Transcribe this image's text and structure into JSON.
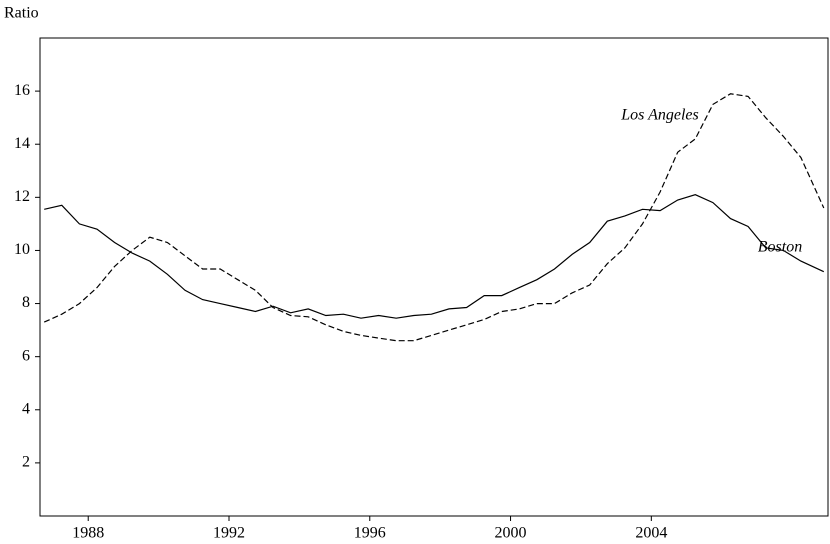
{
  "chart_data": {
    "type": "line",
    "y_label": "Ratio",
    "x": [
      1986.75,
      1987.25,
      1987.75,
      1988.25,
      1988.75,
      1989.25,
      1989.75,
      1990.25,
      1990.75,
      1991.25,
      1991.75,
      1992.25,
      1992.75,
      1993.25,
      1993.75,
      1994.25,
      1994.75,
      1995.25,
      1995.75,
      1996.25,
      1996.75,
      1997.25,
      1997.75,
      1998.25,
      1998.75,
      1999.25,
      1999.75,
      2000.25,
      2000.75,
      2001.25,
      2001.75,
      2002.25,
      2002.75,
      2003.25,
      2003.75,
      2004.25,
      2004.75,
      2005.25,
      2005.75,
      2006.25,
      2006.75,
      2007.25,
      2007.75,
      2008.25,
      2008.9
    ],
    "series": [
      {
        "name": "Boston",
        "color": "#000000",
        "dash": false,
        "values": [
          11.55,
          11.7,
          11.0,
          10.8,
          10.3,
          9.9,
          9.6,
          9.1,
          8.5,
          8.15,
          8.0,
          7.85,
          7.7,
          7.9,
          7.65,
          7.8,
          7.55,
          7.6,
          7.45,
          7.55,
          7.45,
          7.55,
          7.6,
          7.8,
          7.85,
          8.3,
          8.3,
          8.6,
          8.9,
          9.3,
          9.85,
          10.3,
          11.1,
          11.3,
          11.55,
          11.5,
          11.9,
          12.1,
          11.8,
          11.2,
          10.9,
          10.1,
          10.0,
          9.6,
          9.2
        ]
      },
      {
        "name": "Los Angeles",
        "color": "#000000",
        "dash": true,
        "values": [
          7.3,
          7.6,
          8.0,
          8.6,
          9.4,
          10.0,
          10.5,
          10.3,
          9.8,
          9.3,
          9.3,
          8.9,
          8.5,
          7.85,
          7.55,
          7.5,
          7.2,
          6.95,
          6.8,
          6.7,
          6.6,
          6.6,
          6.8,
          7.0,
          7.2,
          7.4,
          7.7,
          7.8,
          8.0,
          8.0,
          8.4,
          8.7,
          9.5,
          10.1,
          11.0,
          12.2,
          13.7,
          14.2,
          15.5,
          15.9,
          15.8,
          15.0,
          14.3,
          13.5,
          11.6
        ]
      }
    ],
    "xlim": [
      1986.63,
      2009.02
    ],
    "xticks": [
      1988,
      1992,
      1996,
      2000,
      2004
    ],
    "ylim": [
      0,
      18
    ],
    "yticks": [
      2,
      4,
      6,
      8,
      10,
      12,
      14,
      16
    ],
    "grid": false
  }
}
